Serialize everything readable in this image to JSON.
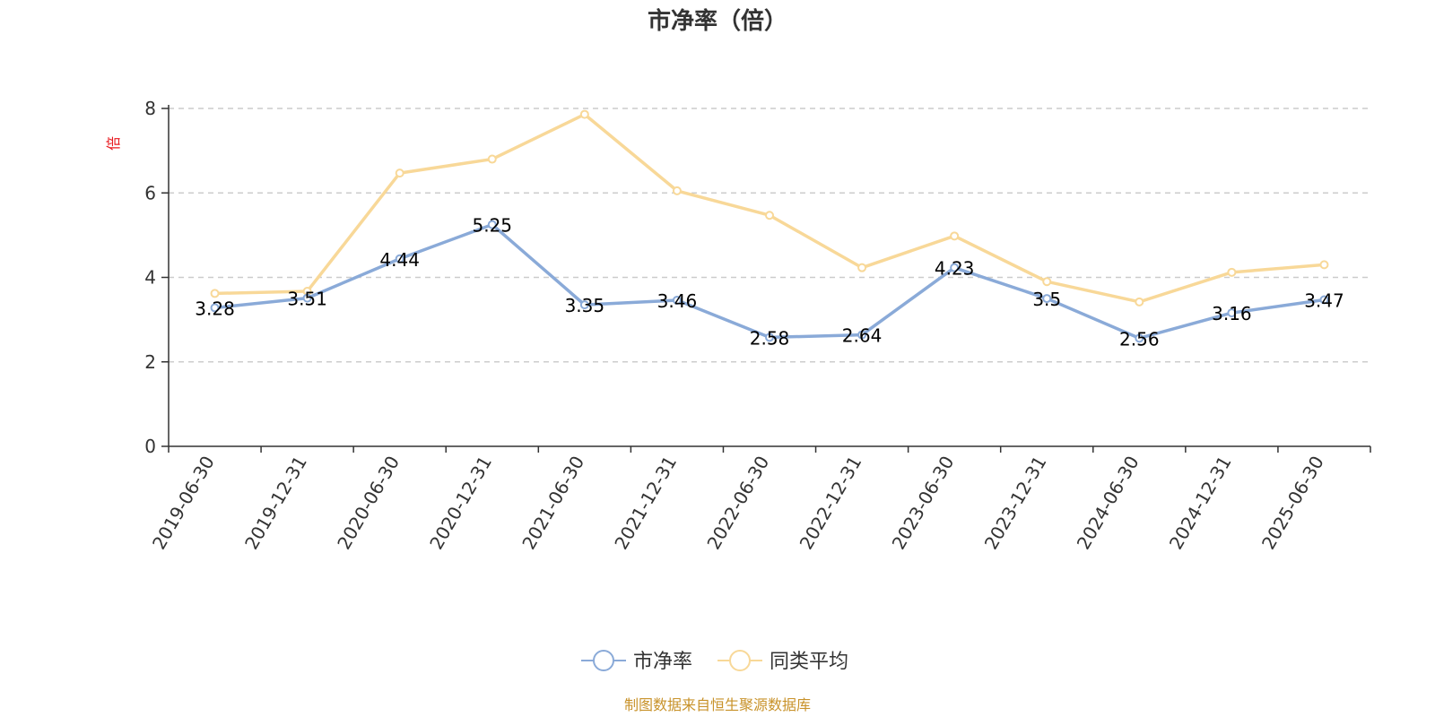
{
  "chart_data": {
    "type": "line",
    "title": "市净率（倍）",
    "ylabel": "倍",
    "xlabel": "",
    "ylim": [
      0,
      8
    ],
    "yticks": [
      0,
      2,
      4,
      6,
      8
    ],
    "grid": true,
    "legend_position": "bottom",
    "categories": [
      "2019-06-30",
      "2019-12-31",
      "2020-06-30",
      "2020-12-31",
      "2021-06-30",
      "2021-12-31",
      "2022-06-30",
      "2022-12-31",
      "2023-06-30",
      "2023-12-31",
      "2024-06-30",
      "2024-12-31",
      "2025-06-30"
    ],
    "series": [
      {
        "name": "市净率",
        "color": "#8aaad8",
        "values": [
          3.28,
          3.51,
          4.44,
          5.25,
          3.35,
          3.46,
          2.58,
          2.64,
          4.23,
          3.5,
          2.56,
          3.16,
          3.47
        ],
        "labels": [
          "3.28",
          "3.51",
          "4.44",
          "5.25",
          "3.35",
          "3.46",
          "2.58",
          "2.64",
          "4.23",
          "3.5",
          "2.56",
          "3.16",
          "3.47"
        ]
      },
      {
        "name": "同类平均",
        "color": "#f8d898",
        "values": [
          3.62,
          3.67,
          6.47,
          6.8,
          7.86,
          6.05,
          5.47,
          4.23,
          4.98,
          3.9,
          3.42,
          4.12,
          4.3
        ]
      }
    ],
    "source": "制图数据来自恒生聚源数据库"
  }
}
